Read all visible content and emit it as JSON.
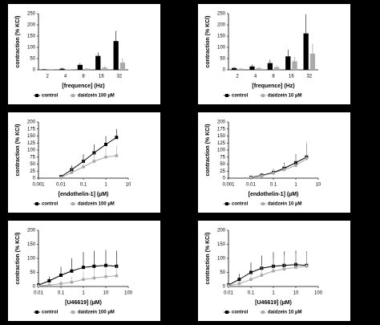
{
  "chart_data": [
    {
      "type": "bar",
      "x_label": "[frequence] (Hz)",
      "y_label": "contraction (% KCl)",
      "categories": [
        "2",
        "4",
        "8",
        "16",
        "32"
      ],
      "ylim": [
        0,
        250
      ],
      "yticks": [
        0,
        50,
        100,
        150,
        200,
        250
      ],
      "series": [
        {
          "name": "control",
          "color": "#000000",
          "values": [
            2,
            5,
            22,
            62,
            128
          ],
          "errors": [
            3,
            5,
            8,
            15,
            45
          ]
        },
        {
          "name": "daidzein 100 µM",
          "color": "#aaaaaa",
          "values": [
            1,
            2,
            5,
            10,
            32
          ],
          "errors": [
            1,
            2,
            3,
            6,
            20
          ]
        }
      ]
    },
    {
      "type": "bar",
      "x_label": "[frequence] (Hz)",
      "y_label": "contraction (% KCl)",
      "categories": [
        "2",
        "4",
        "8",
        "16",
        "32"
      ],
      "ylim": [
        0,
        250
      ],
      "yticks": [
        0,
        50,
        100,
        150,
        200,
        250
      ],
      "series": [
        {
          "name": "control",
          "color": "#000000",
          "values": [
            8,
            15,
            30,
            60,
            162
          ],
          "errors": [
            5,
            8,
            15,
            30,
            85
          ]
        },
        {
          "name": "daidzein 10 µM",
          "color": "#aaaaaa",
          "values": [
            5,
            8,
            12,
            38,
            72
          ],
          "errors": [
            3,
            5,
            8,
            20,
            45
          ]
        }
      ]
    },
    {
      "type": "line",
      "x_label": "[endothelin-1] (µM)",
      "y_label": "contraction (% KCl)",
      "log_x": true,
      "xlim": [
        0.001,
        10
      ],
      "xticks": [
        0.001,
        0.01,
        0.1,
        1,
        10
      ],
      "ylim": [
        0,
        200
      ],
      "yticks": [
        0,
        25,
        50,
        75,
        100,
        125,
        150,
        175,
        200
      ],
      "x": [
        0.01,
        0.03,
        0.1,
        0.3,
        1,
        3
      ],
      "series": [
        {
          "name": "control",
          "color": "#000000",
          "values": [
            5,
            30,
            60,
            90,
            120,
            145
          ],
          "errors": [
            3,
            15,
            25,
            30,
            30,
            30
          ]
        },
        {
          "name": "daidzein 100 µM",
          "color": "#aaaaaa",
          "values": [
            2,
            20,
            40,
            60,
            75,
            80
          ],
          "errors": [
            2,
            15,
            25,
            30,
            35,
            35
          ]
        }
      ]
    },
    {
      "type": "line",
      "x_label": "[endothelin-1] (µM)",
      "y_label": "contraction (% KCl)",
      "log_x": true,
      "xlim": [
        0.001,
        10
      ],
      "xticks": [
        0.001,
        0.01,
        0.1,
        1,
        10
      ],
      "ylim": [
        0,
        200
      ],
      "yticks": [
        0,
        25,
        50,
        75,
        100,
        125,
        150,
        175,
        200
      ],
      "x": [
        0.01,
        0.03,
        0.1,
        0.3,
        1,
        3
      ],
      "series": [
        {
          "name": "control",
          "color": "#000000",
          "values": [
            3,
            10,
            20,
            35,
            55,
            75
          ],
          "errors": [
            2,
            8,
            12,
            20,
            30,
            45
          ]
        },
        {
          "name": "daidzein 10 µM",
          "color": "#aaaaaa",
          "values": [
            2,
            8,
            18,
            30,
            45,
            70
          ],
          "errors": [
            2,
            6,
            12,
            20,
            35,
            60
          ]
        }
      ]
    },
    {
      "type": "line",
      "x_label": "[U46619] (µM)",
      "y_label": "contraction (% KCl)",
      "log_x": true,
      "xlim": [
        0.01,
        100
      ],
      "xticks": [
        0.01,
        0.1,
        1,
        10,
        100
      ],
      "ylim": [
        0,
        200
      ],
      "yticks": [
        0,
        50,
        100,
        150,
        200
      ],
      "x": [
        0.01,
        0.03,
        0.1,
        0.3,
        1,
        3,
        10,
        30
      ],
      "series": [
        {
          "name": "control",
          "color": "#000000",
          "values": [
            5,
            20,
            40,
            55,
            68,
            72,
            75,
            72
          ],
          "errors": [
            5,
            15,
            30,
            45,
            55,
            55,
            55,
            55
          ]
        },
        {
          "name": "daidzein 100 µM",
          "color": "#aaaaaa",
          "values": [
            2,
            5,
            10,
            15,
            25,
            30,
            35,
            38
          ],
          "errors": [
            2,
            5,
            10,
            20,
            30,
            35,
            35,
            35
          ]
        }
      ]
    },
    {
      "type": "line",
      "x_label": "[U46619] (µM)",
      "y_label": "contraction (% KCl)",
      "log_x": true,
      "xlim": [
        0.01,
        100
      ],
      "xticks": [
        0.01,
        0.1,
        1,
        10,
        100
      ],
      "ylim": [
        0,
        200
      ],
      "yticks": [
        0,
        50,
        100,
        150,
        200
      ],
      "x": [
        0.01,
        0.03,
        0.1,
        0.3,
        1,
        3,
        10,
        30
      ],
      "series": [
        {
          "name": "control",
          "color": "#000000",
          "values": [
            5,
            25,
            50,
            65,
            72,
            75,
            78,
            75
          ],
          "errors": [
            5,
            20,
            35,
            45,
            50,
            50,
            50,
            50
          ]
        },
        {
          "name": "daidzein 10 µM",
          "color": "#aaaaaa",
          "values": [
            3,
            10,
            25,
            40,
            55,
            62,
            68,
            72
          ],
          "errors": [
            3,
            10,
            25,
            35,
            45,
            50,
            50,
            50
          ]
        }
      ]
    }
  ]
}
